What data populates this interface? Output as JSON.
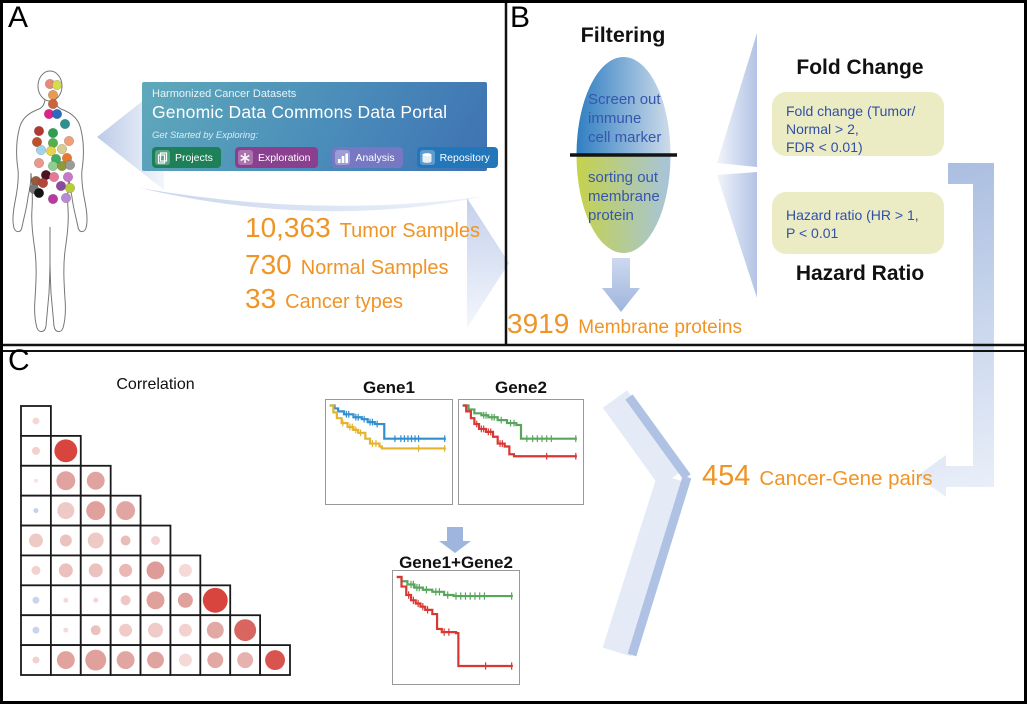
{
  "figure": {
    "panel_a_label": "A",
    "panel_b_label": "B",
    "panel_c_label": "C"
  },
  "colors": {
    "accent_orange": "#ef9426",
    "arrow_blue": "#b3c3e5",
    "box_yellow": "#ebebc4",
    "criteria_text_blue": "#3050a8",
    "ellipse_text_blue": "#3656ae"
  },
  "panelA": {
    "portal": {
      "subtitle": "Harmonized Cancer Datasets",
      "title": "Genomic Data Commons Data Portal",
      "tagline": "Get Started by Exploring:",
      "buttons": [
        {
          "label": "Projects",
          "color": "#1e8059",
          "icon": "projects-icon"
        },
        {
          "label": "Exploration",
          "color": "#8a3f8f",
          "icon": "exploration-icon"
        },
        {
          "label": "Analysis",
          "color": "#7678c4",
          "icon": "analysis-icon"
        },
        {
          "label": "Repository",
          "color": "#2276ba",
          "icon": "repository-icon"
        }
      ]
    },
    "stats": [
      {
        "value": "10,363",
        "label": "Tumor Samples"
      },
      {
        "value": "730",
        "label": "Normal Samples"
      },
      {
        "value": "33",
        "label": "Cancer types"
      }
    ],
    "body_dots": [
      [
        41,
        17,
        "#e8897a"
      ],
      [
        48,
        18,
        "#d6dc50"
      ],
      [
        44,
        28,
        "#e89a55"
      ],
      [
        44,
        37,
        "#c9653c"
      ],
      [
        40,
        47,
        "#e0218a"
      ],
      [
        48,
        47,
        "#2a6bbf"
      ],
      [
        56,
        57,
        "#2e8f8f"
      ],
      [
        30,
        64,
        "#b03a30"
      ],
      [
        44,
        66,
        "#2e9e4f"
      ],
      [
        28,
        75,
        "#c0502a"
      ],
      [
        44,
        76,
        "#53b04a"
      ],
      [
        60,
        74,
        "#eda079"
      ],
      [
        32,
        83,
        "#9fd4e8"
      ],
      [
        42,
        84,
        "#e8d44a"
      ],
      [
        53,
        82,
        "#d8cc8a"
      ],
      [
        47,
        92,
        "#3fae62"
      ],
      [
        58,
        91,
        "#e87830"
      ],
      [
        30,
        96,
        "#e89a8a"
      ],
      [
        44,
        99,
        "#8fce8f"
      ],
      [
        53,
        99,
        "#8f9a3a"
      ],
      [
        61,
        98,
        "#9a9a9a"
      ],
      [
        37,
        108,
        "#4a1520"
      ],
      [
        27,
        114,
        "#9a5a3a"
      ],
      [
        45,
        110,
        "#e87898"
      ],
      [
        59,
        110,
        "#c878c8"
      ],
      [
        34,
        116,
        "#b5453a"
      ],
      [
        25,
        122,
        "#787878"
      ],
      [
        52,
        119,
        "#8a4a9e"
      ],
      [
        61,
        121,
        "#b8cc3a"
      ],
      [
        30,
        126,
        "#141414"
      ],
      [
        57,
        131,
        "#b88ad4"
      ],
      [
        44,
        132,
        "#b83a9e"
      ]
    ]
  },
  "panelB": {
    "title": "Filtering",
    "ellipse_top_text": "Screen out\nimmune\ncell marker",
    "ellipse_bottom_text": "sorting out\nmembrane\nprotein",
    "result": {
      "value": "3919",
      "label": "Membrane proteins"
    },
    "fold_change_heading": "Fold Change",
    "fold_change_box": "Fold change (Tumor/\nNormal > 2,\nFDR < 0.01)",
    "hazard_box": "Hazard ratio (HR > 1,\nP < 0.01",
    "hazard_heading": "Hazard Ratio"
  },
  "panelC": {
    "pairs": {
      "value": "454",
      "label": "Cancer-Gene pairs"
    }
  },
  "chart_data": [
    {
      "type": "bubble-matrix",
      "title": "Correlation",
      "layout": "lower-triangular",
      "n": 9,
      "cell_size": 30,
      "rows": [
        [
          [
            3.5,
            "#f3d8d6"
          ]
        ],
        [
          [
            4,
            "#f1d0cd"
          ],
          [
            11.5,
            "#d8443e"
          ]
        ],
        [
          [
            2,
            "#f6e3e1"
          ],
          [
            9.5,
            "#e1a39f"
          ],
          [
            9,
            "#e1a39f"
          ]
        ],
        [
          [
            2.5,
            "#c5d1ec"
          ],
          [
            8.5,
            "#eec9c6"
          ],
          [
            9.5,
            "#e0a09c"
          ],
          [
            9.5,
            "#e2a6a2"
          ]
        ],
        [
          [
            7,
            "#eecac7"
          ],
          [
            6,
            "#ecc2bf"
          ],
          [
            8,
            "#eec9c6"
          ],
          [
            5,
            "#eabcb9"
          ],
          [
            4.5,
            "#f2d3d1"
          ]
        ],
        [
          [
            4.5,
            "#f2d1cf"
          ],
          [
            7,
            "#ecc0bd"
          ],
          [
            7,
            "#ecc2bf"
          ],
          [
            6.5,
            "#eab7b4"
          ],
          [
            9,
            "#de9c98"
          ],
          [
            6.5,
            "#f4d9d7"
          ]
        ],
        [
          [
            3.5,
            "#c9d5ee"
          ],
          [
            2.5,
            "#f4dbd9"
          ],
          [
            2.5,
            "#f2d6d4"
          ],
          [
            5,
            "#eec6c3"
          ],
          [
            9,
            "#e0a09c"
          ],
          [
            7.5,
            "#e0a09c"
          ],
          [
            12.5,
            "#d8443e"
          ]
        ],
        [
          [
            3.5,
            "#c9d5ee"
          ],
          [
            2.5,
            "#f4dbd9"
          ],
          [
            5,
            "#ecc0bd"
          ],
          [
            6.5,
            "#f0cbc8"
          ],
          [
            7.5,
            "#f0cbc8"
          ],
          [
            6.5,
            "#f2d1cf"
          ],
          [
            8.5,
            "#e2a8a4"
          ],
          [
            11,
            "#d8655f"
          ]
        ],
        [
          [
            3.5,
            "#f2d1cf"
          ],
          [
            9,
            "#e2a39f"
          ],
          [
            10.5,
            "#e0a09c"
          ],
          [
            9,
            "#e2a6a2"
          ],
          [
            8.5,
            "#e0a4a0"
          ],
          [
            6.5,
            "#f4d9d7"
          ],
          [
            8,
            "#e2a8a4"
          ],
          [
            8,
            "#e6b2ae"
          ],
          [
            10,
            "#d8554f"
          ]
        ]
      ]
    },
    {
      "type": "line",
      "subtype": "kaplan-meier",
      "title": "Gene1",
      "xlim": [
        0,
        1
      ],
      "ylim": [
        0,
        1
      ],
      "grid": false,
      "legend": "none",
      "series": [
        {
          "name": "blue-curve",
          "color": "#2f8fd0",
          "points": [
            [
              0,
              0.97
            ],
            [
              0.04,
              0.94
            ],
            [
              0.07,
              0.91
            ],
            [
              0.12,
              0.88
            ],
            [
              0.18,
              0.88
            ],
            [
              0.2,
              0.85
            ],
            [
              0.27,
              0.83
            ],
            [
              0.32,
              0.8
            ],
            [
              0.38,
              0.78
            ],
            [
              0.44,
              0.78
            ],
            [
              0.46,
              0.63
            ],
            [
              0.98,
              0.63
            ]
          ],
          "censors": [
            [
              0.14,
              0.88
            ],
            [
              0.16,
              0.88
            ],
            [
              0.22,
              0.85
            ],
            [
              0.24,
              0.85
            ],
            [
              0.29,
              0.83
            ],
            [
              0.34,
              0.8
            ],
            [
              0.36,
              0.8
            ],
            [
              0.4,
              0.78
            ],
            [
              0.55,
              0.63
            ],
            [
              0.6,
              0.63
            ],
            [
              0.63,
              0.63
            ],
            [
              0.66,
              0.63
            ],
            [
              0.69,
              0.63
            ],
            [
              0.72,
              0.63
            ],
            [
              0.75,
              0.63
            ],
            [
              0.97,
              0.63
            ]
          ]
        },
        {
          "name": "yellow-curve",
          "color": "#e3b42d",
          "points": [
            [
              0,
              0.97
            ],
            [
              0.03,
              0.9
            ],
            [
              0.06,
              0.84
            ],
            [
              0.1,
              0.79
            ],
            [
              0.15,
              0.75
            ],
            [
              0.2,
              0.72
            ],
            [
              0.24,
              0.69
            ],
            [
              0.3,
              0.63
            ],
            [
              0.34,
              0.58
            ],
            [
              0.42,
              0.55
            ],
            [
              0.44,
              0.53
            ],
            [
              0.98,
              0.53
            ]
          ],
          "censors": [
            [
              0.11,
              0.79
            ],
            [
              0.17,
              0.75
            ],
            [
              0.19,
              0.75
            ],
            [
              0.22,
              0.72
            ],
            [
              0.26,
              0.69
            ],
            [
              0.36,
              0.58
            ],
            [
              0.39,
              0.58
            ],
            [
              0.75,
              0.53
            ],
            [
              0.97,
              0.53
            ]
          ]
        }
      ]
    },
    {
      "type": "line",
      "subtype": "kaplan-meier",
      "title": "Gene2",
      "xlim": [
        0,
        1
      ],
      "ylim": [
        0,
        1
      ],
      "grid": false,
      "legend": "none",
      "series": [
        {
          "name": "green-curve",
          "color": "#57a65c",
          "points": [
            [
              0,
              0.97
            ],
            [
              0.05,
              0.93
            ],
            [
              0.1,
              0.89
            ],
            [
              0.16,
              0.87
            ],
            [
              0.22,
              0.85
            ],
            [
              0.3,
              0.82
            ],
            [
              0.38,
              0.79
            ],
            [
              0.46,
              0.77
            ],
            [
              0.5,
              0.63
            ],
            [
              0.98,
              0.63
            ]
          ],
          "censors": [
            [
              0.18,
              0.87
            ],
            [
              0.2,
              0.87
            ],
            [
              0.25,
              0.85
            ],
            [
              0.27,
              0.85
            ],
            [
              0.33,
              0.82
            ],
            [
              0.41,
              0.79
            ],
            [
              0.44,
              0.79
            ],
            [
              0.55,
              0.63
            ],
            [
              0.6,
              0.63
            ],
            [
              0.64,
              0.63
            ],
            [
              0.68,
              0.63
            ],
            [
              0.72,
              0.63
            ],
            [
              0.76,
              0.63
            ],
            [
              0.97,
              0.63
            ]
          ]
        },
        {
          "name": "red-curve",
          "color": "#d93732",
          "points": [
            [
              0,
              0.97
            ],
            [
              0.03,
              0.91
            ],
            [
              0.07,
              0.84
            ],
            [
              0.1,
              0.78
            ],
            [
              0.14,
              0.73
            ],
            [
              0.2,
              0.7
            ],
            [
              0.26,
              0.65
            ],
            [
              0.3,
              0.58
            ],
            [
              0.36,
              0.55
            ],
            [
              0.4,
              0.47
            ],
            [
              0.44,
              0.45
            ],
            [
              0.98,
              0.45
            ]
          ],
          "censors": [
            [
              0.12,
              0.78
            ],
            [
              0.16,
              0.73
            ],
            [
              0.18,
              0.73
            ],
            [
              0.22,
              0.7
            ],
            [
              0.24,
              0.7
            ],
            [
              0.32,
              0.58
            ],
            [
              0.34,
              0.58
            ],
            [
              0.72,
              0.45
            ],
            [
              0.97,
              0.45
            ]
          ]
        }
      ]
    },
    {
      "type": "line",
      "subtype": "kaplan-meier",
      "title": "Gene1+Gene2",
      "xlim": [
        0,
        1
      ],
      "ylim": [
        0,
        1
      ],
      "grid": false,
      "legend": "none",
      "series": [
        {
          "name": "green-curve",
          "color": "#57a65c",
          "points": [
            [
              0,
              0.97
            ],
            [
              0.04,
              0.93
            ],
            [
              0.09,
              0.9
            ],
            [
              0.15,
              0.87
            ],
            [
              0.22,
              0.85
            ],
            [
              0.3,
              0.83
            ],
            [
              0.4,
              0.8
            ],
            [
              0.48,
              0.79
            ],
            [
              0.98,
              0.79
            ]
          ],
          "censors": [
            [
              0.12,
              0.9
            ],
            [
              0.14,
              0.9
            ],
            [
              0.17,
              0.87
            ],
            [
              0.19,
              0.87
            ],
            [
              0.25,
              0.85
            ],
            [
              0.33,
              0.83
            ],
            [
              0.36,
              0.83
            ],
            [
              0.43,
              0.8
            ],
            [
              0.5,
              0.79
            ],
            [
              0.54,
              0.79
            ],
            [
              0.58,
              0.79
            ],
            [
              0.62,
              0.79
            ],
            [
              0.66,
              0.79
            ],
            [
              0.7,
              0.79
            ],
            [
              0.74,
              0.79
            ],
            [
              0.97,
              0.79
            ]
          ]
        },
        {
          "name": "red-curve",
          "color": "#d93732",
          "points": [
            [
              0,
              0.97
            ],
            [
              0.04,
              0.88
            ],
            [
              0.08,
              0.8
            ],
            [
              0.12,
              0.75
            ],
            [
              0.16,
              0.72
            ],
            [
              0.2,
              0.69
            ],
            [
              0.24,
              0.66
            ],
            [
              0.3,
              0.62
            ],
            [
              0.34,
              0.48
            ],
            [
              0.38,
              0.45
            ],
            [
              0.5,
              0.44
            ],
            [
              0.52,
              0.13
            ],
            [
              0.98,
              0.13
            ]
          ],
          "censors": [
            [
              0.1,
              0.8
            ],
            [
              0.14,
              0.75
            ],
            [
              0.18,
              0.72
            ],
            [
              0.22,
              0.69
            ],
            [
              0.26,
              0.66
            ],
            [
              0.4,
              0.45
            ],
            [
              0.44,
              0.45
            ],
            [
              0.75,
              0.13
            ],
            [
              0.97,
              0.13
            ]
          ]
        }
      ]
    }
  ]
}
